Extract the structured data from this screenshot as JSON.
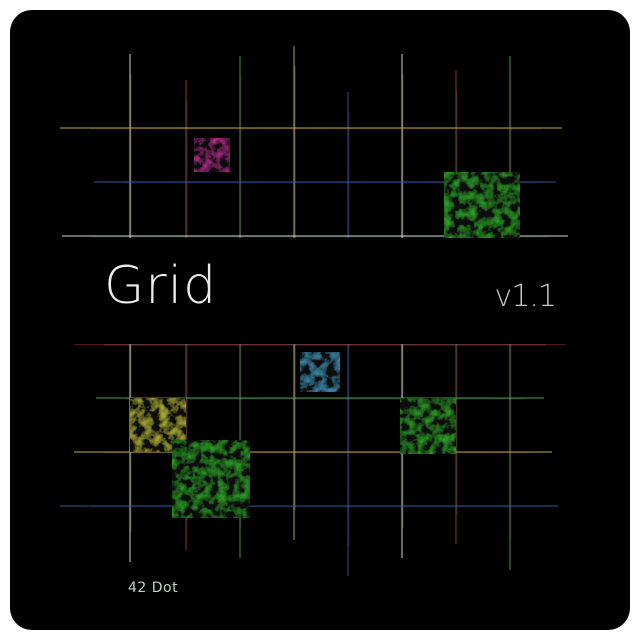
{
  "title": "Grid",
  "version": "v1.1",
  "footer": "42 Dot",
  "colors": {
    "background": "#000000",
    "grid_lines": [
      "#e6e6e6",
      "#c9b84a",
      "#a03a3a",
      "#3a5aa0",
      "#4aa060"
    ],
    "tiles": [
      "#2f8f2a",
      "#b0308a",
      "#3f7fa0",
      "#9aa035"
    ]
  },
  "tiles": [
    {
      "color": "magenta",
      "pattern": "mottled"
    },
    {
      "color": "green",
      "pattern": "mottled"
    },
    {
      "color": "blue",
      "pattern": "mottled"
    },
    {
      "color": "olive",
      "pattern": "mottled"
    },
    {
      "color": "green",
      "pattern": "mottled"
    },
    {
      "color": "green",
      "pattern": "mottled"
    }
  ]
}
